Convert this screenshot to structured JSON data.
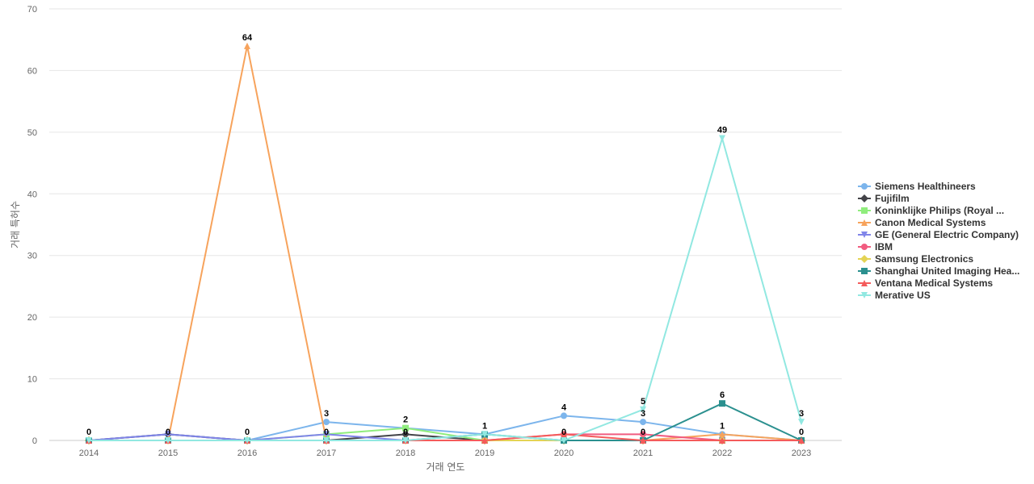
{
  "chart_data": {
    "type": "line",
    "xlabel": "거래 연도",
    "ylabel": "거래 특허수",
    "x": [
      "2014",
      "2015",
      "2016",
      "2017",
      "2018",
      "2019",
      "2020",
      "2021",
      "2022",
      "2023"
    ],
    "ylim": [
      0,
      70
    ],
    "yticks": [
      0,
      10,
      20,
      30,
      40,
      50,
      60,
      70
    ],
    "grid": true,
    "legend_position": "right",
    "series": [
      {
        "name": "Siemens Healthineers",
        "color": "#7cb5ec",
        "marker": "circle",
        "values": [
          0,
          1,
          0,
          3,
          2,
          1,
          4,
          3,
          1,
          0
        ]
      },
      {
        "name": "Fujifilm",
        "color": "#434348",
        "marker": "diamond",
        "values": [
          0,
          1,
          0,
          0,
          1,
          0,
          0,
          0,
          0,
          0
        ]
      },
      {
        "name": "Koninklijke Philips (Royal ...",
        "color": "#90ed7d",
        "marker": "square",
        "values": [
          0,
          0,
          0,
          1,
          2,
          0,
          0,
          0,
          0,
          0
        ]
      },
      {
        "name": "Canon Medical Systems",
        "color": "#f7a35c",
        "marker": "triangle",
        "values": [
          0,
          0,
          64,
          0,
          0,
          0,
          0,
          0,
          1,
          0
        ]
      },
      {
        "name": "GE (General Electric Company)",
        "color": "#8085e9",
        "marker": "triangle-down",
        "values": [
          0,
          1,
          0,
          1,
          0,
          0,
          0,
          0,
          0,
          0
        ]
      },
      {
        "name": "IBM",
        "color": "#f15c80",
        "marker": "circle",
        "values": [
          0,
          0,
          0,
          0,
          0,
          0,
          1,
          1,
          0,
          0
        ]
      },
      {
        "name": "Samsung Electronics",
        "color": "#e4d354",
        "marker": "diamond",
        "values": [
          0,
          0,
          0,
          0,
          0,
          0,
          0,
          0,
          0,
          0
        ]
      },
      {
        "name": "Shanghai United Imaging Hea...",
        "color": "#2b908f",
        "marker": "square",
        "values": [
          0,
          0,
          0,
          0,
          0,
          1,
          0,
          0,
          6,
          0
        ]
      },
      {
        "name": "Ventana Medical Systems",
        "color": "#f45b5b",
        "marker": "triangle",
        "values": [
          0,
          0,
          0,
          0,
          0,
          0,
          1,
          0,
          0,
          0
        ]
      },
      {
        "name": "Merative US",
        "color": "#91e8e1",
        "marker": "triangle-down",
        "values": [
          0,
          0,
          0,
          0,
          0,
          1,
          0,
          5,
          49,
          3
        ]
      }
    ],
    "data_labels": [
      {
        "x": "2014",
        "value": 0
      },
      {
        "x": "2015",
        "value": 0
      },
      {
        "x": "2016",
        "value": 64
      },
      {
        "x": "2016",
        "value": 0
      },
      {
        "x": "2017",
        "value": 3
      },
      {
        "x": "2017",
        "value": 0
      },
      {
        "x": "2018",
        "value": 2
      },
      {
        "x": "2018",
        "value": 0
      },
      {
        "x": "2019",
        "value": 1
      },
      {
        "x": "2020",
        "value": 4
      },
      {
        "x": "2020",
        "value": 0
      },
      {
        "x": "2021",
        "value": 5
      },
      {
        "x": "2021",
        "value": 3
      },
      {
        "x": "2021",
        "value": 0
      },
      {
        "x": "2022",
        "value": 49
      },
      {
        "x": "2022",
        "value": 6
      },
      {
        "x": "2022",
        "value": 1
      },
      {
        "x": "2023",
        "value": 3
      },
      {
        "x": "2023",
        "value": 0
      }
    ]
  }
}
